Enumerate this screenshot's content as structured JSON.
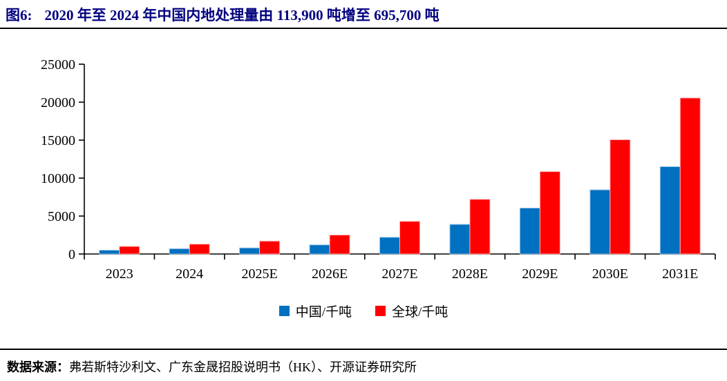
{
  "header": {
    "figure_label": "图6:",
    "title": "2020 年至 2024 年中国内地处理量由 113,900 吨增至 695,700 吨"
  },
  "chart_data": {
    "type": "bar",
    "title": "2020 年至 2024 年中国内地处理量由 113,900 吨增至 695,700 吨",
    "categories": [
      "2023",
      "2024",
      "2025E",
      "2026E",
      "2027E",
      "2028E",
      "2029E",
      "2030E",
      "2031E"
    ],
    "series": [
      {
        "name": "中国/千吨",
        "color": "#0070C0",
        "edge_color": "#9DC3E6",
        "values": [
          500,
          696,
          800,
          1200,
          2200,
          3900,
          6050,
          8450,
          11500
        ]
      },
      {
        "name": "全球/千吨",
        "color": "#FF0000",
        "edge_color": "#FFB3B3",
        "values": [
          1000,
          1300,
          1700,
          2500,
          4300,
          7200,
          10850,
          15050,
          20550
        ]
      }
    ],
    "xlabel": "",
    "ylabel": "",
    "ylim": [
      0,
      25000
    ],
    "yticks": [
      0,
      5000,
      10000,
      15000,
      20000,
      25000
    ],
    "grid": false,
    "legend_position": "bottom",
    "axis_color": "#000000"
  },
  "footer": {
    "source_label": "数据来源：",
    "source_text": "弗若斯特沙利文、广东金晟招股说明书（HK）、开源证券研究所"
  }
}
